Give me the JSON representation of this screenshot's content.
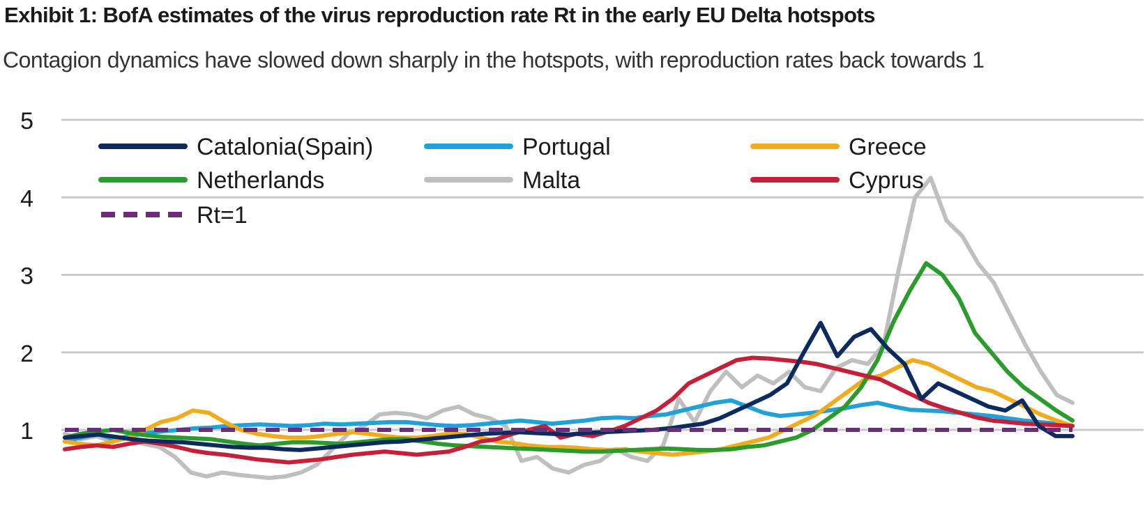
{
  "title": "Exhibit 1: BofA estimates of the virus reproduction rate Rt in the early EU Delta hotspots",
  "subtitle": "Contagion dynamics have slowed down sharply in the hotspots, with reproduction rates back towards 1",
  "chart_data": {
    "type": "line",
    "title": "Exhibit 1: BofA estimates of the virus reproduction rate Rt in the early EU Delta hotspots",
    "subtitle": "Contagion dynamics have slowed down sharply in the hotspots, with reproduction rates back towards 1",
    "xlabel": "",
    "ylabel": "",
    "x_ticks_shown": false,
    "ylim": [
      0.5,
      5
    ],
    "yticks": [
      1,
      2,
      3,
      4,
      5
    ],
    "grid": "horizontal",
    "legend_position": "top-left",
    "x_index": "observation index 0-60 (daily estimates, date labels not shown)",
    "series": [
      {
        "name": "Catalonia(Spain)",
        "color": "#0d2a5e",
        "dash": false,
        "start": 0,
        "values": [
          0.9,
          0.92,
          0.94,
          0.91,
          0.88,
          0.86,
          0.85,
          0.84,
          0.82,
          0.8,
          0.78,
          0.77,
          0.77,
          0.75,
          0.74,
          0.76,
          0.78,
          0.8,
          0.82,
          0.84,
          0.85,
          0.87,
          0.89,
          0.91,
          0.93,
          0.95,
          0.96,
          0.97,
          0.96,
          0.95,
          0.94,
          0.96,
          0.97,
          0.98,
          0.99,
          1.0,
          1.02,
          1.05,
          1.08,
          1.15,
          1.25,
          1.35,
          1.45,
          1.6,
          2.0,
          2.38,
          1.95,
          2.2,
          2.3,
          2.05,
          1.85,
          1.4,
          1.6,
          1.5,
          1.4,
          1.3,
          1.25,
          1.38,
          1.05,
          0.92,
          0.92
        ]
      },
      {
        "name": "Portugal",
        "color": "#22a0d8",
        "dash": false,
        "start": 0,
        "values": [
          0.85,
          0.9,
          0.95,
          0.88,
          0.92,
          0.96,
          0.98,
          1.0,
          1.02,
          1.03,
          1.05,
          1.06,
          1.07,
          1.06,
          1.05,
          1.06,
          1.08,
          1.07,
          1.08,
          1.09,
          1.1,
          1.1,
          1.08,
          1.06,
          1.05,
          1.06,
          1.08,
          1.1,
          1.12,
          1.1,
          1.08,
          1.1,
          1.12,
          1.15,
          1.16,
          1.15,
          1.18,
          1.2,
          1.25,
          1.3,
          1.35,
          1.38,
          1.3,
          1.22,
          1.18,
          1.2,
          1.22,
          1.25,
          1.28,
          1.32,
          1.35,
          1.3,
          1.26,
          1.25,
          1.24,
          1.22,
          1.2,
          1.18,
          1.15,
          1.12,
          1.1,
          1.08,
          1.05
        ]
      },
      {
        "name": "Greece",
        "color": "#f0ac1e",
        "dash": false,
        "start": 0,
        "values": [
          0.85,
          0.82,
          0.8,
          0.85,
          0.9,
          1.0,
          1.1,
          1.15,
          1.25,
          1.22,
          1.1,
          1.0,
          0.95,
          0.92,
          0.9,
          0.9,
          0.92,
          0.95,
          0.97,
          0.95,
          0.92,
          0.9,
          0.9,
          0.92,
          0.95,
          0.95,
          0.9,
          0.85,
          0.83,
          0.8,
          0.78,
          0.78,
          0.77,
          0.75,
          0.74,
          0.75,
          0.72,
          0.7,
          0.68,
          0.7,
          0.72,
          0.75,
          0.8,
          0.85,
          0.9,
          1.0,
          1.1,
          1.2,
          1.35,
          1.5,
          1.65,
          1.7,
          1.8,
          1.9,
          1.85,
          1.75,
          1.65,
          1.55,
          1.5,
          1.4,
          1.3,
          1.2,
          1.12,
          1.05
        ]
      },
      {
        "name": "Netherlands",
        "color": "#2c9a2c",
        "dash": false,
        "start": 0,
        "values": [
          0.9,
          0.95,
          0.98,
          1.0,
          0.96,
          0.93,
          0.91,
          0.9,
          0.89,
          0.88,
          0.85,
          0.82,
          0.8,
          0.82,
          0.84,
          0.84,
          0.83,
          0.82,
          0.84,
          0.86,
          0.88,
          0.88,
          0.85,
          0.82,
          0.8,
          0.79,
          0.78,
          0.77,
          0.76,
          0.75,
          0.74,
          0.73,
          0.72,
          0.72,
          0.73,
          0.74,
          0.75,
          0.76,
          0.75,
          0.74,
          0.74,
          0.75,
          0.78,
          0.8,
          0.85,
          0.9,
          1.0,
          1.15,
          1.3,
          1.55,
          1.9,
          2.4,
          2.8,
          3.15,
          3.0,
          2.7,
          2.25,
          2.0,
          1.75,
          1.55,
          1.4,
          1.25,
          1.12
        ]
      },
      {
        "name": "Malta",
        "color": "#bfbfbf",
        "dash": false,
        "start": 0,
        "values": [
          0.95,
          0.88,
          0.92,
          0.85,
          0.9,
          0.82,
          0.78,
          0.65,
          0.45,
          0.4,
          0.45,
          0.42,
          0.4,
          0.38,
          0.4,
          0.45,
          0.55,
          0.75,
          0.95,
          1.05,
          1.2,
          1.22,
          1.2,
          1.15,
          1.25,
          1.3,
          1.2,
          1.15,
          1.05,
          0.6,
          0.65,
          0.5,
          0.45,
          0.55,
          0.6,
          0.75,
          0.65,
          0.6,
          0.8,
          1.4,
          1.1,
          1.5,
          1.75,
          1.55,
          1.7,
          1.6,
          1.75,
          1.55,
          1.5,
          1.8,
          1.9,
          1.85,
          2.1,
          3.1,
          4.0,
          4.25,
          3.7,
          3.5,
          3.15,
          2.9,
          2.5,
          2.1,
          1.75,
          1.45,
          1.35
        ]
      },
      {
        "name": "Cyprus",
        "color": "#c4203a",
        "dash": false,
        "start": 0,
        "values": [
          0.75,
          0.78,
          0.8,
          0.78,
          0.82,
          0.85,
          0.82,
          0.78,
          0.73,
          0.7,
          0.68,
          0.65,
          0.62,
          0.6,
          0.58,
          0.6,
          0.62,
          0.65,
          0.68,
          0.7,
          0.72,
          0.7,
          0.68,
          0.7,
          0.72,
          0.78,
          0.85,
          0.88,
          0.95,
          1.0,
          1.05,
          0.9,
          0.95,
          0.92,
          0.98,
          1.05,
          1.15,
          1.25,
          1.4,
          1.6,
          1.7,
          1.8,
          1.9,
          1.93,
          1.92,
          1.9,
          1.88,
          1.85,
          1.8,
          1.75,
          1.7,
          1.65,
          1.55,
          1.45,
          1.35,
          1.28,
          1.22,
          1.16,
          1.12,
          1.1,
          1.08,
          1.07,
          1.06,
          1.05
        ]
      },
      {
        "name": "Rt=1",
        "color": "#6b2d7a",
        "dash": true,
        "start": 0,
        "values": [
          1,
          1,
          1,
          1,
          1,
          1,
          1,
          1,
          1,
          1,
          1,
          1,
          1,
          1,
          1,
          1,
          1,
          1,
          1,
          1,
          1,
          1,
          1,
          1,
          1,
          1,
          1,
          1,
          1,
          1,
          1,
          1,
          1,
          1,
          1,
          1,
          1,
          1,
          1,
          1,
          1,
          1,
          1,
          1,
          1,
          1,
          1,
          1,
          1,
          1,
          1,
          1,
          1,
          1,
          1,
          1,
          1,
          1,
          1,
          1,
          1,
          1,
          1,
          1,
          1
        ]
      }
    ]
  }
}
